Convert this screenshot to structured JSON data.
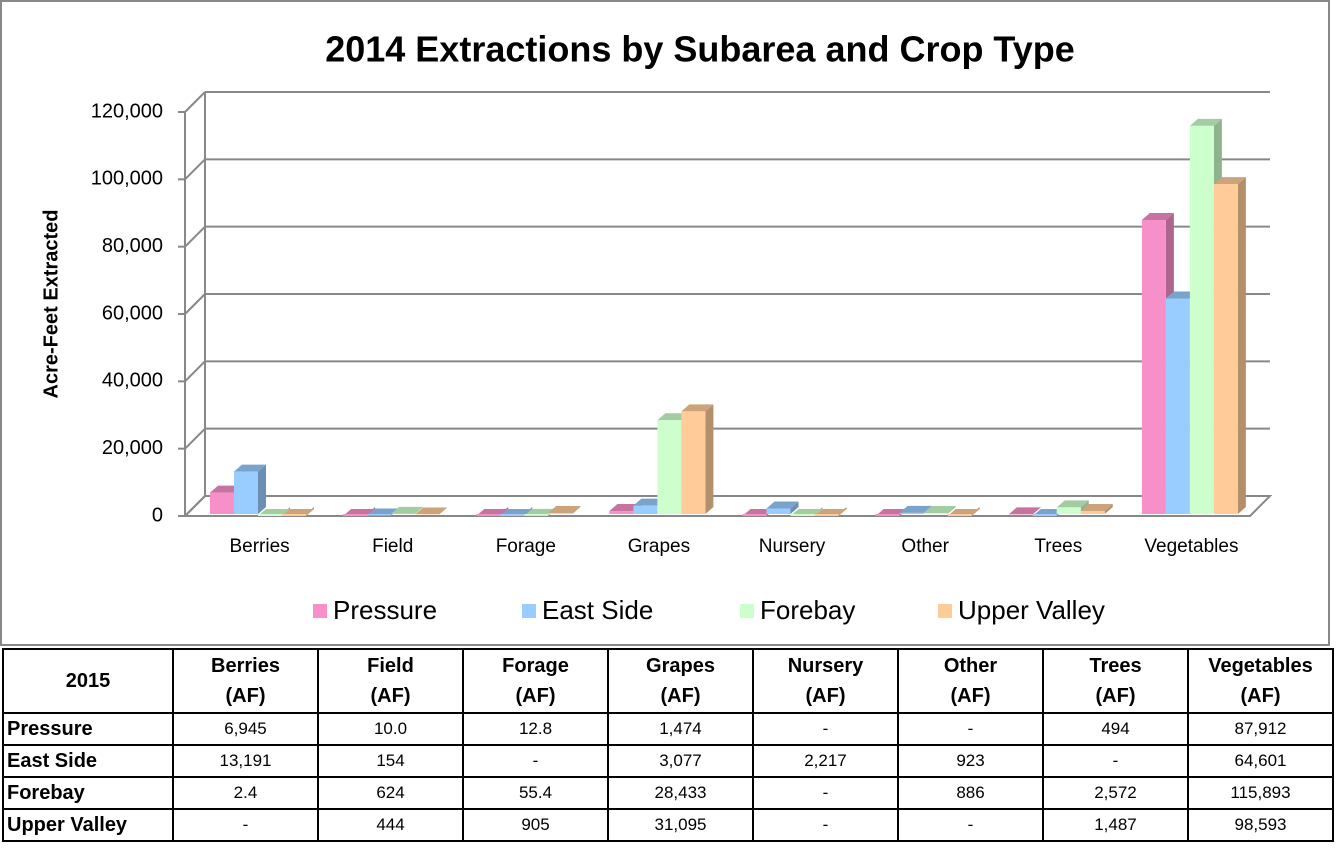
{
  "chart_data": {
    "type": "bar3d",
    "title": "2014 Extractions by Subarea and Crop Type",
    "y_label": "Acre-Feet Extracted",
    "categories": [
      "Berries",
      "Field",
      "Forage",
      "Grapes",
      "Nursery",
      "Other",
      "Trees",
      "Vegetables"
    ],
    "series": [
      {
        "name": "Pressure",
        "color": "#f790c8",
        "values": [
          6945,
          10.0,
          12.8,
          1474,
          0,
          0,
          494,
          87912
        ],
        "value_labels": [
          "6,945",
          "10.0",
          "12.8",
          "1,474",
          "-",
          "-",
          "494",
          "87,912"
        ]
      },
      {
        "name": "East Side",
        "color": "#99ccff",
        "values": [
          13191,
          154,
          0,
          3077,
          2217,
          923,
          0,
          64601
        ],
        "value_labels": [
          "13,191",
          "154",
          "-",
          "3,077",
          "2,217",
          "923",
          "-",
          "64,601"
        ]
      },
      {
        "name": "Forebay",
        "color": "#ccffcc",
        "values": [
          2.4,
          624,
          55.4,
          28433,
          0,
          886,
          2572,
          115893
        ],
        "value_labels": [
          "2.4",
          "624",
          "55.4",
          "28,433",
          "-",
          "886",
          "2,572",
          "115,893"
        ]
      },
      {
        "name": "Upper Valley",
        "color": "#ffcc99",
        "values": [
          0,
          444,
          905,
          31095,
          0,
          0,
          1487,
          98593
        ],
        "value_labels": [
          "-",
          "444",
          "905",
          "31,095",
          "-",
          "-",
          "1,487",
          "98,593"
        ]
      }
    ],
    "ylim": [
      0,
      120000
    ],
    "yticks": [
      0,
      {
        "value": 20000,
        "label": "20,000"
      },
      {
        "value": 40000,
        "label": "40,000"
      },
      {
        "value": 60000,
        "label": "60,000"
      },
      {
        "value": 80000,
        "label": "80,000"
      },
      {
        "value": 100000,
        "label": "100,000"
      },
      {
        "value": 120000,
        "label": "120,000"
      }
    ],
    "grid": true,
    "legend": "bottom"
  },
  "table": {
    "corner": "2015",
    "unit": "(AF)"
  }
}
